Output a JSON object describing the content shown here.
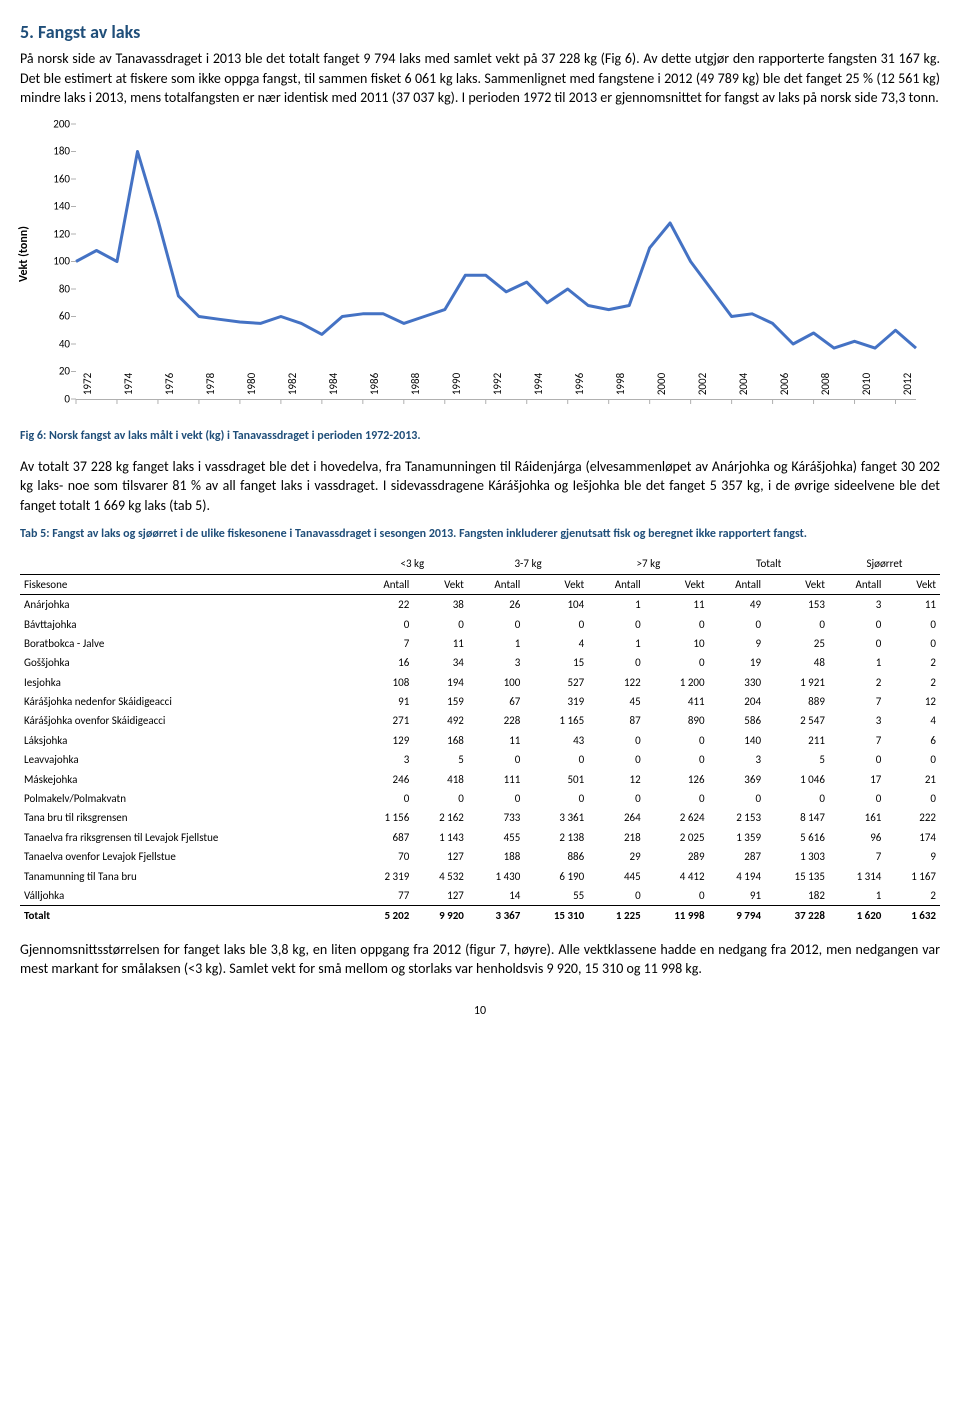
{
  "heading": "5. Fangst av laks",
  "para1": "På norsk side av Tanavassdraget i 2013 ble det totalt fanget 9 794 laks med samlet vekt på 37 228 kg (Fig 6). Av dette utgjør den rapporterte fangsten 31 167 kg. Det ble estimert at fiskere som ikke oppga fangst, til sammen fisket 6 061 kg laks. Sammenlignet med fangstene i 2012 (49 789 kg) ble det fanget 25 % (12 561 kg) mindre laks i 2013, mens totalfangsten er nær identisk med 2011 (37 037 kg). I perioden 1972 til 2013 er gjennomsnittet for fangst av laks på norsk side 73,3 tonn.",
  "chart": {
    "type": "line",
    "ylabel": "Vekt (tonn)",
    "ylim": [
      0,
      200
    ],
    "ytick_step": 20,
    "line_color": "#4472c4",
    "line_width": 3,
    "years": [
      1972,
      1973,
      1974,
      1975,
      1976,
      1977,
      1978,
      1979,
      1980,
      1981,
      1982,
      1983,
      1984,
      1985,
      1986,
      1987,
      1988,
      1989,
      1990,
      1991,
      1992,
      1993,
      1994,
      1995,
      1996,
      1997,
      1998,
      1999,
      2000,
      2001,
      2002,
      2003,
      2004,
      2005,
      2006,
      2007,
      2008,
      2009,
      2010,
      2011,
      2012,
      2013
    ],
    "values": [
      100,
      108,
      100,
      180,
      130,
      75,
      60,
      58,
      56,
      55,
      60,
      55,
      47,
      60,
      62,
      62,
      55,
      60,
      65,
      90,
      90,
      78,
      85,
      70,
      80,
      68,
      65,
      68,
      110,
      128,
      100,
      80,
      60,
      62,
      55,
      40,
      48,
      37,
      42,
      37,
      50,
      37
    ],
    "xticks": [
      1972,
      1974,
      1976,
      1978,
      1980,
      1982,
      1984,
      1986,
      1988,
      1990,
      1992,
      1994,
      1996,
      1998,
      2000,
      2002,
      2004,
      2006,
      2008,
      2010,
      2012
    ]
  },
  "caption_chart": "Fig 6: Norsk fangst av laks målt i vekt (kg) i Tanavassdraget i perioden 1972-2013.",
  "para2": "Av totalt 37 228 kg fanget laks i vassdraget ble det i hovedelva, fra Tanamunningen til Ráidenjárga (elvesammenløpet av Anárjohka og Kárášjohka) fanget 30 202 kg laks- noe som tilsvarer 81 % av all fanget laks i vassdraget. I sidevassdragene Kárášjohka og Iešjohka ble det fanget 5 357 kg, i de øvrige sideelvene ble det fanget totalt 1 669 kg laks (tab 5).",
  "caption_table": "Tab 5: Fangst av laks og sjøørret i de ulike fiskesonene i Tanavassdraget i sesongen 2013. Fangsten inkluderer gjenutsatt fisk og beregnet ikke rapportert fangst.",
  "table": {
    "group_headers": [
      "",
      "<3 kg",
      "3-7 kg",
      ">7 kg",
      "Totalt",
      "Sjøørret"
    ],
    "sub_headers": [
      "Fiskesone",
      "Antall",
      "Vekt",
      "Antall",
      "Vekt",
      "Antall",
      "Vekt",
      "Antall",
      "Vekt",
      "Antall",
      "Vekt"
    ],
    "rows": [
      [
        "Anárjohka",
        22,
        38,
        26,
        104,
        1,
        11,
        49,
        153,
        3,
        11
      ],
      [
        "Bávttajohka",
        0,
        0,
        0,
        0,
        0,
        0,
        0,
        0,
        0,
        0
      ],
      [
        "Boratbokca - Jalve",
        7,
        11,
        1,
        4,
        1,
        10,
        9,
        25,
        0,
        0
      ],
      [
        "Goššjohka",
        16,
        34,
        3,
        15,
        0,
        0,
        19,
        48,
        1,
        2
      ],
      [
        "Iesjohka",
        108,
        194,
        100,
        527,
        122,
        "1 200",
        330,
        "1 921",
        2,
        2
      ],
      [
        "Kárášjohka nedenfor Skáidigeacci",
        91,
        159,
        67,
        319,
        45,
        411,
        204,
        889,
        7,
        12
      ],
      [
        "Kárášjohka ovenfor Skáidigeacci",
        271,
        492,
        228,
        "1 165",
        87,
        890,
        586,
        "2 547",
        3,
        4
      ],
      [
        "Láksjohka",
        129,
        168,
        11,
        43,
        0,
        0,
        140,
        211,
        7,
        6
      ],
      [
        "Leavvajohka",
        3,
        5,
        0,
        0,
        0,
        0,
        3,
        5,
        0,
        0
      ],
      [
        "Máskejohka",
        246,
        418,
        111,
        501,
        12,
        126,
        369,
        "1 046",
        17,
        21
      ],
      [
        "Polmakelv/Polmakvatn",
        0,
        0,
        0,
        0,
        0,
        0,
        0,
        0,
        0,
        0
      ],
      [
        "Tana bru til riksgrensen",
        "1 156",
        "2 162",
        733,
        "3 361",
        264,
        "2 624",
        "2 153",
        "8 147",
        161,
        222
      ],
      [
        "Tanaelva fra riksgrensen til Levajok Fjellstue",
        687,
        "1 143",
        455,
        "2 138",
        218,
        "2 025",
        "1 359",
        "5 616",
        96,
        174
      ],
      [
        "Tanaelva ovenfor Levajok Fjellstue",
        70,
        127,
        188,
        886,
        29,
        289,
        287,
        "1 303",
        7,
        9
      ],
      [
        "Tanamunning til Tana bru",
        "2 319",
        "4 532",
        "1 430",
        "6 190",
        445,
        "4 412",
        "4 194",
        "15 135",
        "1 314",
        "1 167"
      ],
      [
        "Válljohka",
        77,
        127,
        14,
        55,
        0,
        0,
        91,
        182,
        1,
        2
      ]
    ],
    "total": [
      "Totalt",
      "5 202",
      "9 920",
      "3 367",
      "15 310",
      "1 225",
      "11 998",
      "9 794",
      "37 228",
      "1 620",
      "1 632"
    ]
  },
  "para3": "Gjennomsnittsstørrelsen for fanget laks ble 3,8 kg, en liten oppgang fra 2012 (figur 7, høyre). Alle vektklassene hadde en nedgang fra 2012, men nedgangen var mest markant for smålaksen (<3 kg). Samlet vekt for små mellom og storlaks var henholdsvis 9 920, 15 310 og 11 998 kg.",
  "page_number": "10"
}
